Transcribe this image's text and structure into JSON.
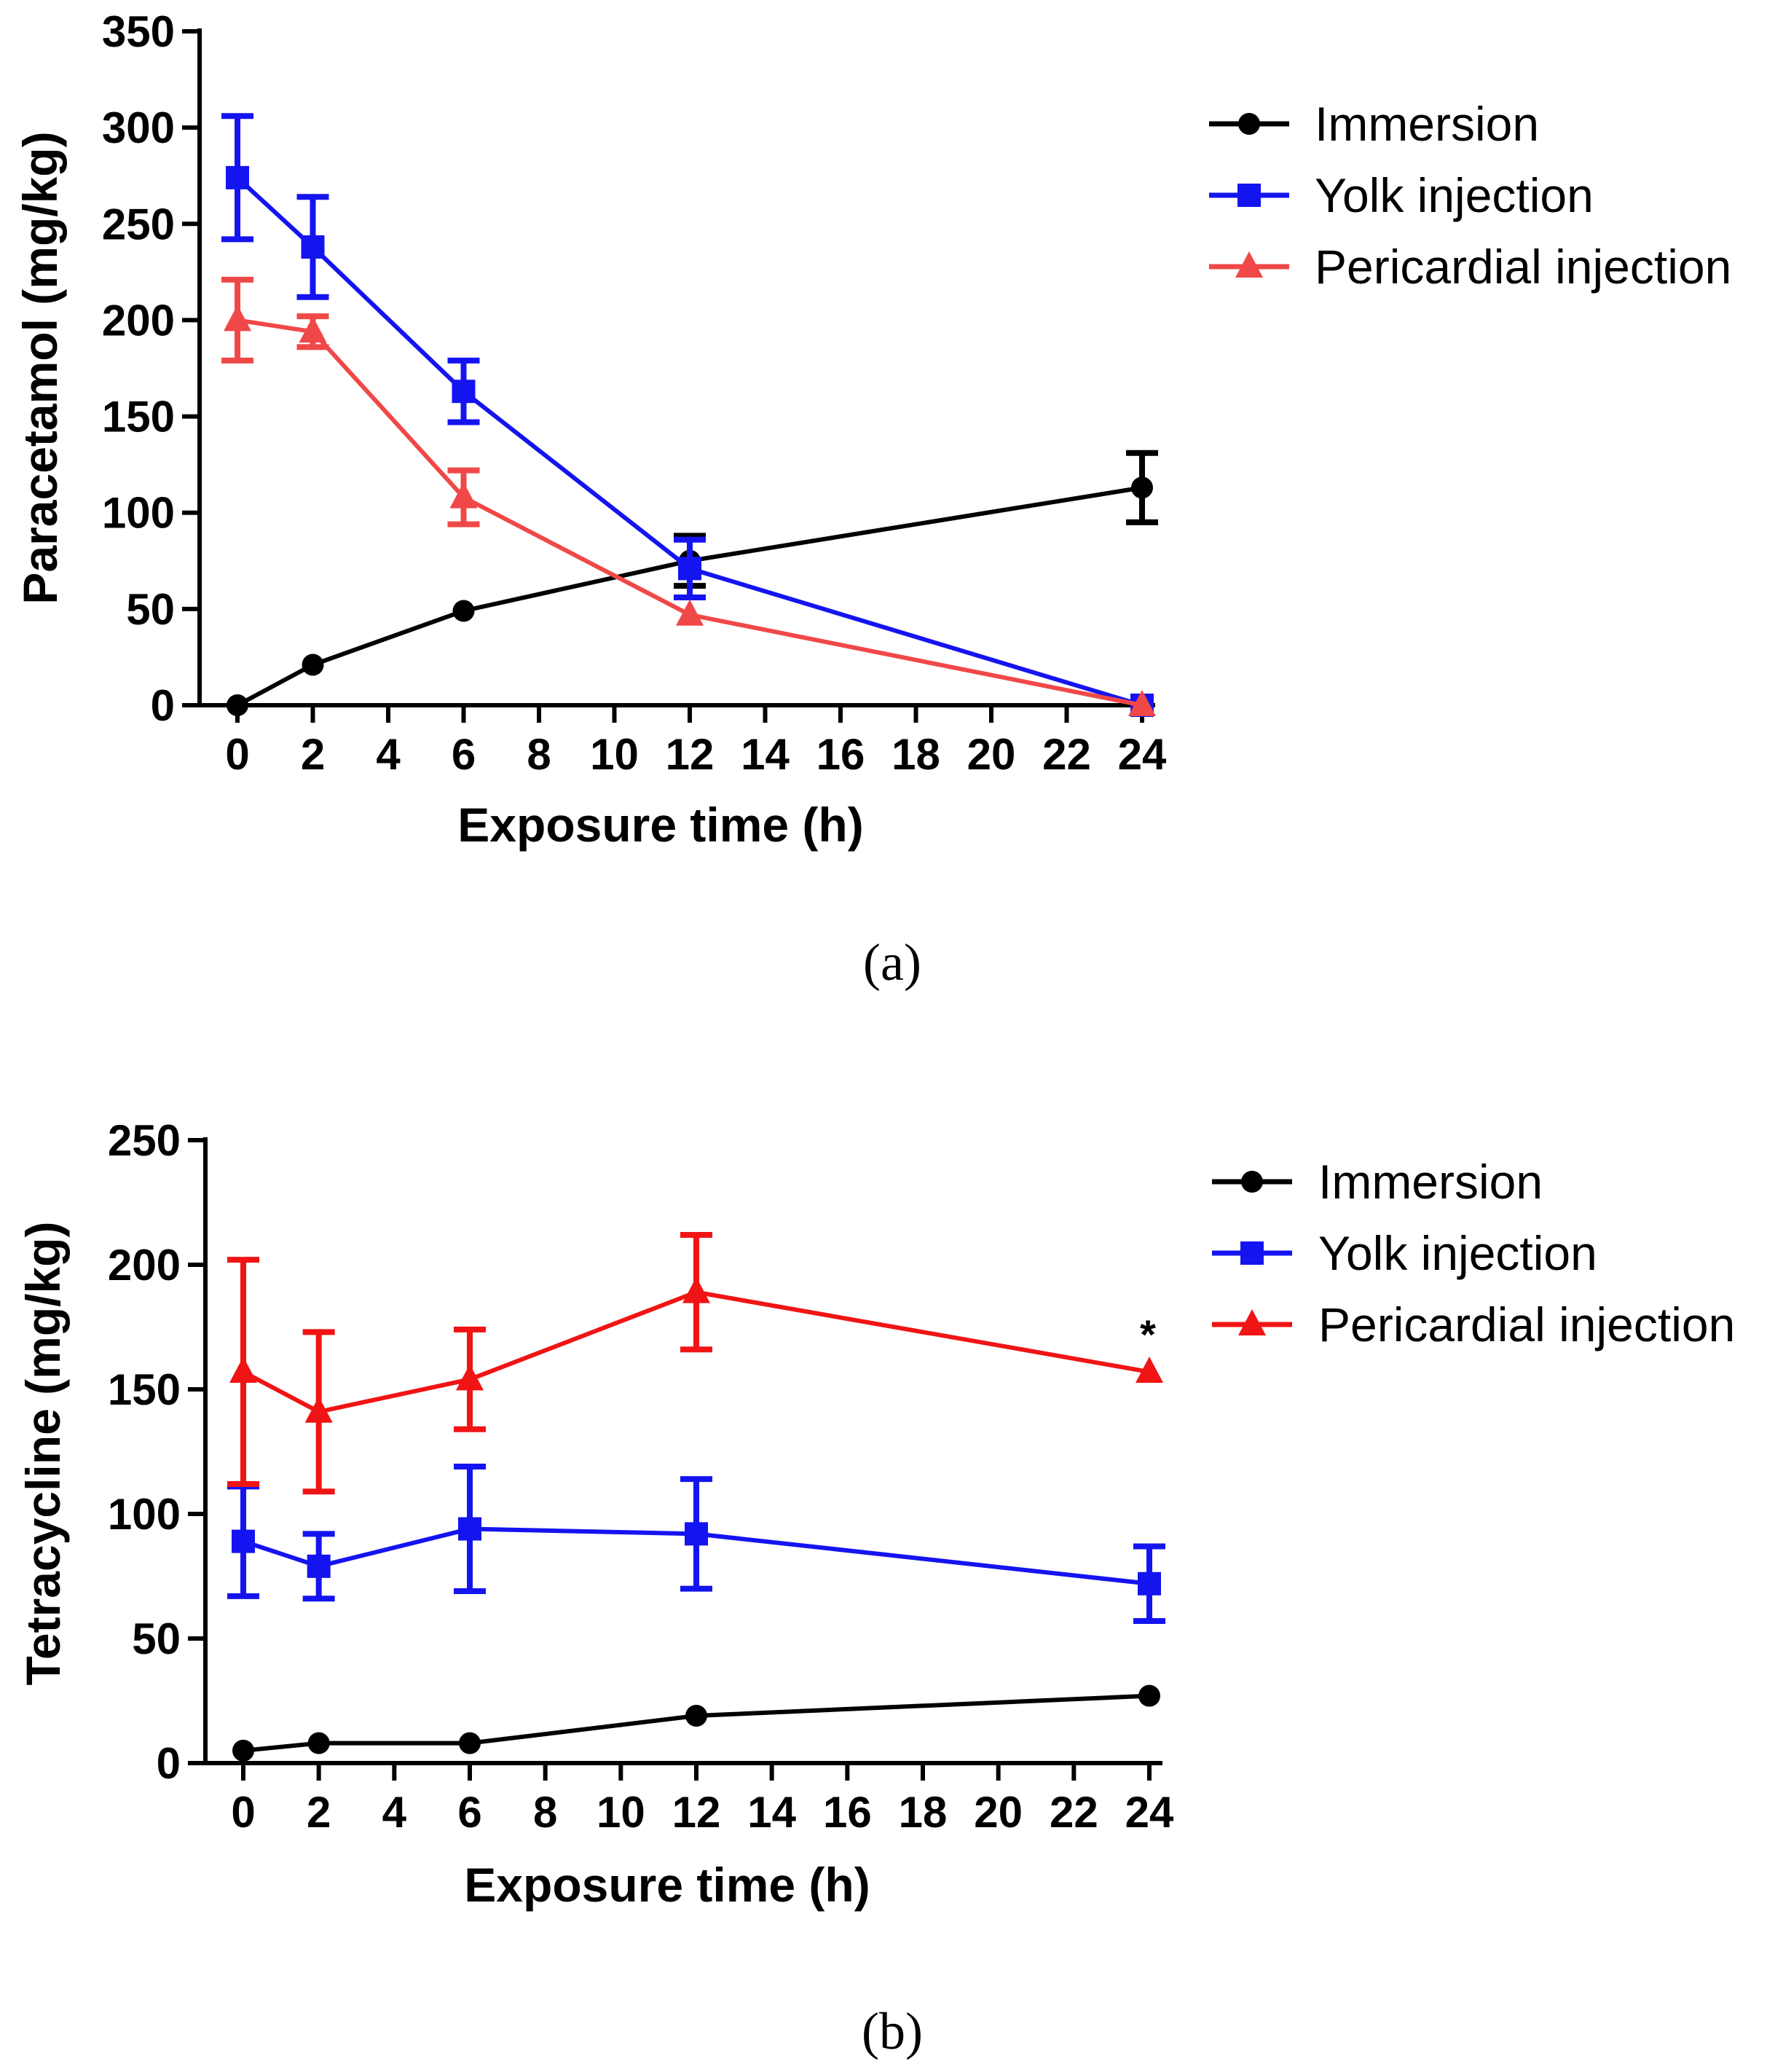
{
  "chart_data": [
    {
      "type": "line",
      "panel_label": "(a)",
      "xlabel": "Exposure time (h)",
      "ylabel": "Paracetamol (mg/kg)",
      "xlim": [
        0,
        24
      ],
      "ylim": [
        0,
        350
      ],
      "xticks": [
        0,
        2,
        4,
        6,
        8,
        10,
        12,
        14,
        16,
        18,
        20,
        22,
        24
      ],
      "yticks": [
        0,
        50,
        100,
        150,
        200,
        250,
        300,
        350
      ],
      "x": [
        0,
        2,
        6,
        12,
        24
      ],
      "legend_position": "top-right",
      "series": [
        {
          "name": "Immersion",
          "marker": "circle",
          "color": "#000000",
          "values": [
            0,
            21,
            49,
            75,
            113
          ],
          "errors": [
            0,
            0,
            0,
            13,
            18
          ]
        },
        {
          "name": "Yolk injection",
          "marker": "square",
          "color": "#1414f0",
          "values": [
            274,
            238,
            163,
            71,
            0
          ],
          "errors": [
            32,
            26,
            16,
            15,
            0
          ]
        },
        {
          "name": "Pericardial injection",
          "marker": "triangle",
          "color": "#f04848",
          "values": [
            200,
            194,
            108,
            47,
            0
          ],
          "errors": [
            21,
            8,
            14,
            0,
            0
          ]
        }
      ],
      "annotations": []
    },
    {
      "type": "line",
      "panel_label": "(b)",
      "xlabel": "Exposure time (h)",
      "ylabel": "Tetracycline (mg/kg)",
      "xlim": [
        0,
        24
      ],
      "ylim": [
        0,
        250
      ],
      "xticks": [
        0,
        2,
        4,
        6,
        8,
        10,
        12,
        14,
        16,
        18,
        20,
        22,
        24
      ],
      "yticks": [
        0,
        50,
        100,
        150,
        200,
        250
      ],
      "x": [
        0,
        2,
        6,
        12,
        24
      ],
      "legend_position": "top-right",
      "series": [
        {
          "name": "Immersion",
          "marker": "circle",
          "color": "#000000",
          "values": [
            5,
            8,
            8,
            19,
            27
          ],
          "errors": [
            0,
            0,
            0,
            0,
            0
          ]
        },
        {
          "name": "Yolk injection",
          "marker": "square",
          "color": "#1414f0",
          "values": [
            89,
            79,
            94,
            92,
            72
          ],
          "errors": [
            22,
            13,
            25,
            22,
            15
          ]
        },
        {
          "name": "Pericardial injection",
          "marker": "triangle",
          "color": "#f01414",
          "values": [
            157,
            141,
            154,
            189,
            157
          ],
          "errors": [
            45,
            32,
            20,
            23,
            0
          ]
        }
      ],
      "annotations": [
        {
          "text": "*",
          "series": "Pericardial injection",
          "x": 24
        }
      ]
    }
  ]
}
